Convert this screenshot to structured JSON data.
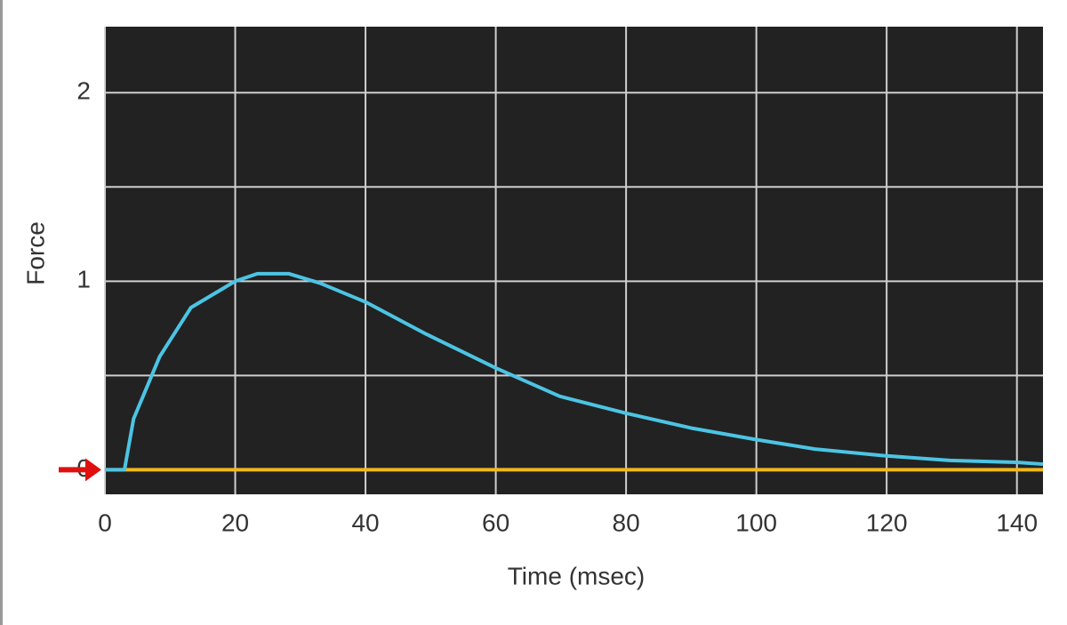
{
  "chart_data": {
    "type": "line",
    "xlabel": "Time (msec)",
    "ylabel": "Force",
    "xlim": [
      0,
      144
    ],
    "xticks": [
      0,
      20,
      40,
      60,
      80,
      100,
      120,
      140
    ],
    "ylim": [
      -0.13,
      2.35
    ],
    "yticks": [
      0,
      1,
      2
    ],
    "ygrid": [
      0,
      0.5,
      1,
      1.5,
      2
    ],
    "grid": true,
    "background": "#222222",
    "series": [
      {
        "color": "#f0b81c",
        "x": [
          0,
          144
        ],
        "values": [
          0,
          0
        ]
      },
      {
        "color": "#4cc4e4",
        "x": [
          0,
          3,
          4.4,
          8.4,
          13.2,
          20,
          23.4,
          28.2,
          33,
          40,
          49.3,
          60,
          69.8,
          80,
          90.2,
          100,
          109,
          119.5,
          129.7,
          139.7,
          144
        ],
        "values": [
          0,
          0,
          0.27,
          0.6,
          0.86,
          1.0,
          1.04,
          1.04,
          0.99,
          0.89,
          0.72,
          0.54,
          0.39,
          0.3,
          0.22,
          0.16,
          0.11,
          0.075,
          0.05,
          0.04,
          0.03
        ]
      }
    ]
  }
}
